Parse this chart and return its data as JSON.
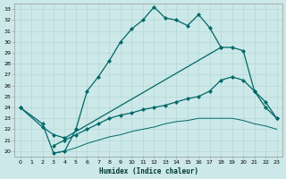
{
  "title": "",
  "xlabel": "Humidex (Indice chaleur)",
  "bg_color": "#cce8e8",
  "line_color": "#006868",
  "xlim": [
    -0.5,
    23.5
  ],
  "ylim": [
    19.5,
    33.5
  ],
  "yticks": [
    20,
    21,
    22,
    23,
    24,
    25,
    26,
    27,
    28,
    29,
    30,
    31,
    32,
    33
  ],
  "xticks": [
    0,
    1,
    2,
    3,
    4,
    5,
    6,
    7,
    8,
    9,
    10,
    11,
    12,
    13,
    14,
    15,
    16,
    17,
    18,
    19,
    20,
    21,
    22,
    23
  ],
  "line1_x": [
    0,
    2,
    3,
    4,
    5,
    6,
    7,
    8,
    9,
    10,
    11,
    12,
    13,
    14,
    15,
    16,
    17,
    18
  ],
  "line1_y": [
    24.0,
    22.5,
    19.8,
    20.0,
    22.0,
    25.5,
    26.8,
    28.3,
    30.0,
    31.2,
    32.0,
    33.2,
    32.2,
    32.0,
    31.5,
    32.5,
    31.3,
    29.5
  ],
  "line2_x": [
    0,
    2,
    3,
    4,
    18,
    19,
    20,
    21,
    22,
    23
  ],
  "line2_y": [
    24.0,
    22.2,
    21.5,
    21.2,
    29.5,
    29.5,
    29.2,
    25.5,
    24.0,
    23.0
  ],
  "line3_x": [
    3,
    4,
    5,
    6,
    7,
    8,
    9,
    10,
    11,
    12,
    13,
    14,
    15,
    16,
    17,
    18,
    19,
    20,
    21,
    22,
    23
  ],
  "line3_y": [
    20.5,
    21.0,
    21.5,
    22.0,
    22.5,
    23.0,
    23.3,
    23.5,
    23.8,
    24.0,
    24.2,
    24.5,
    24.8,
    25.0,
    25.5,
    26.5,
    26.8,
    26.5,
    25.5,
    24.5,
    23.0
  ],
  "line4_x": [
    3,
    4,
    5,
    6,
    7,
    8,
    9,
    10,
    11,
    12,
    13,
    14,
    15,
    16,
    17,
    18,
    19,
    20,
    21,
    22,
    23
  ],
  "line4_y": [
    19.8,
    20.0,
    20.3,
    20.7,
    21.0,
    21.3,
    21.5,
    21.8,
    22.0,
    22.2,
    22.5,
    22.7,
    22.8,
    23.0,
    23.0,
    23.0,
    23.0,
    22.8,
    22.5,
    22.3,
    22.0
  ]
}
